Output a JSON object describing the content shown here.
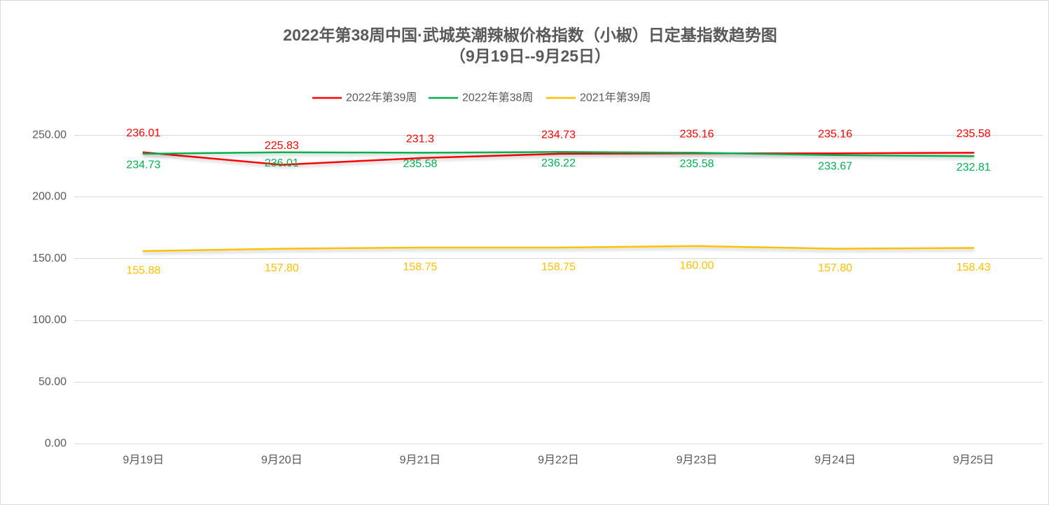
{
  "chart_data": {
    "type": "line",
    "title": "2022年第38周中国·武城英潮辣椒价格指数（小椒）日定基指数趋势图",
    "subtitle": "（9月19日--9月25日）",
    "xlabel": "",
    "ylabel": "",
    "categories": [
      "9月19日",
      "9月20日",
      "9月21日",
      "9月22日",
      "9月23日",
      "9月24日",
      "9月25日"
    ],
    "ylim": [
      0,
      250
    ],
    "y_tick_labels": [
      "0.00",
      "50.00",
      "100.00",
      "150.00",
      "200.00",
      "250.00"
    ],
    "grid": true,
    "legend_position": "top",
    "series": [
      {
        "name": "2022年第39周",
        "color": "#FF0000",
        "values": [
          236.01,
          225.83,
          231.3,
          234.73,
          235.16,
          235.16,
          235.58
        ],
        "data_labels": [
          "236.01",
          "225.83",
          "231.3",
          "234.73",
          "235.16",
          "235.16",
          "235.58"
        ]
      },
      {
        "name": "2022年第38周",
        "color": "#00B050",
        "values": [
          234.73,
          236.01,
          235.58,
          236.22,
          235.58,
          233.67,
          232.81
        ],
        "data_labels": [
          "234.73",
          "236.01",
          "235.58",
          "236.22",
          "235.58",
          "233.67",
          "232.81"
        ]
      },
      {
        "name": "2021年第39周",
        "color": "#FFC000",
        "values": [
          155.88,
          157.8,
          158.75,
          158.75,
          160.0,
          157.8,
          158.43
        ],
        "data_labels": [
          "155.88",
          "157.80",
          "158.75",
          "158.75",
          "160.00",
          "157.80",
          "158.43"
        ]
      }
    ]
  }
}
